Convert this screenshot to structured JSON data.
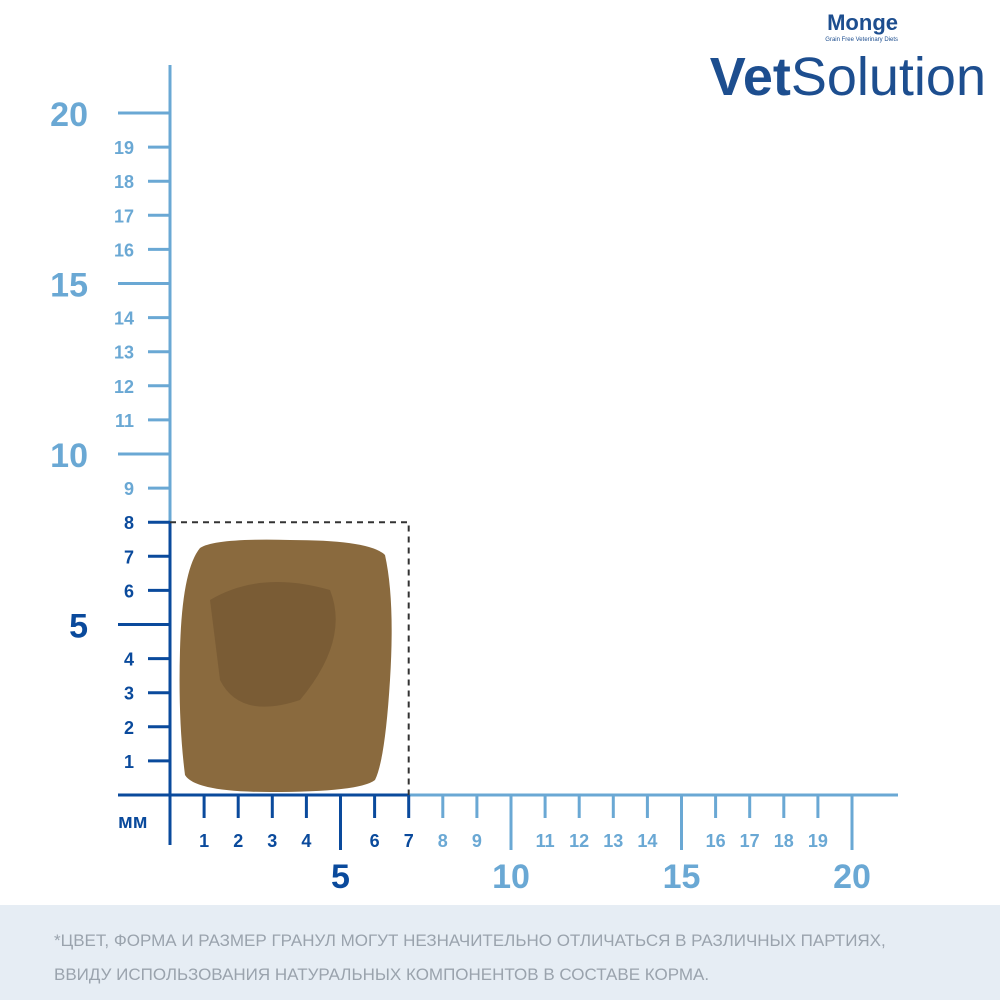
{
  "brand": {
    "name": "Monge",
    "tagline": "Grain Free Veterinary Diets",
    "product_bold": "Vet",
    "product_light": "Solution"
  },
  "ruler": {
    "unit": "мм",
    "y_minor": [
      1,
      2,
      3,
      4,
      6,
      7,
      8,
      9,
      11,
      12,
      13,
      14,
      16,
      17,
      18,
      19
    ],
    "y_major": [
      5,
      10,
      15,
      20
    ],
    "x_minor": [
      1,
      2,
      3,
      4,
      6,
      7,
      8,
      9,
      11,
      12,
      13,
      14,
      16,
      17,
      18,
      19
    ],
    "x_major": [
      5,
      10,
      15,
      20
    ],
    "kibble_width": 7,
    "kibble_height": 8
  },
  "footnote": {
    "lines": [
      "*ЦВЕТ, ФОРМА И РАЗМЕР ГРАНУЛ МОГУТ НЕЗНАЧИТЕЛЬНО ОТЛИЧАТЬСЯ В РАЗЛИЧНЫХ ПАРТИЯХ,",
      "ВВИДУ ИСПОЛЬЗОВАНИЯ НАТУРАЛЬНЫХ КОМПОНЕНТОВ В СОСТАВЕ КОРМА."
    ]
  }
}
